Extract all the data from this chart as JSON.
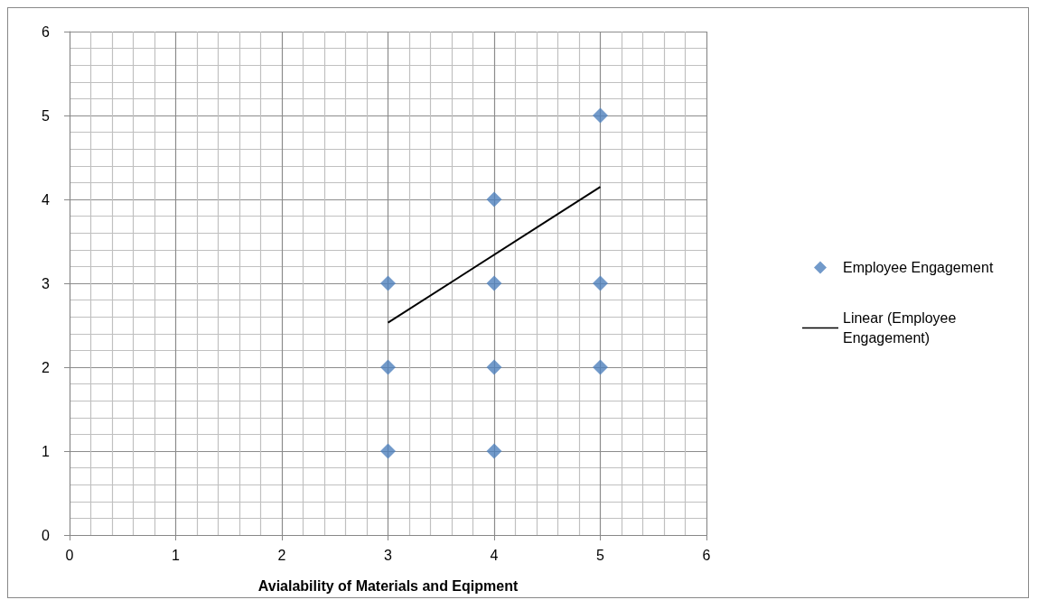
{
  "chart_data": {
    "type": "scatter",
    "xlabel": "Avialability of Materials and Eqipment",
    "xlim": [
      0,
      6
    ],
    "xticks": [
      0,
      1,
      2,
      3,
      4,
      5,
      6
    ],
    "ylim": [
      0,
      6
    ],
    "yticks": [
      0,
      1,
      2,
      3,
      4,
      5,
      6
    ],
    "grid": true,
    "legend": "right",
    "series": [
      {
        "name": "Employee Engagement",
        "color": "#4f81bd",
        "marker": "diamond",
        "x": [
          3,
          3,
          3,
          4,
          4,
          4,
          4,
          5,
          5,
          5
        ],
        "values": [
          3,
          2,
          1,
          4,
          3,
          2,
          1,
          5,
          3,
          2
        ]
      },
      {
        "name": "Linear (Employee Engagement)",
        "type": "line",
        "color": "#000000",
        "marker": "none",
        "line_style": "solid",
        "x": [
          3,
          5
        ],
        "values": [
          2.53,
          4.15
        ]
      }
    ]
  }
}
